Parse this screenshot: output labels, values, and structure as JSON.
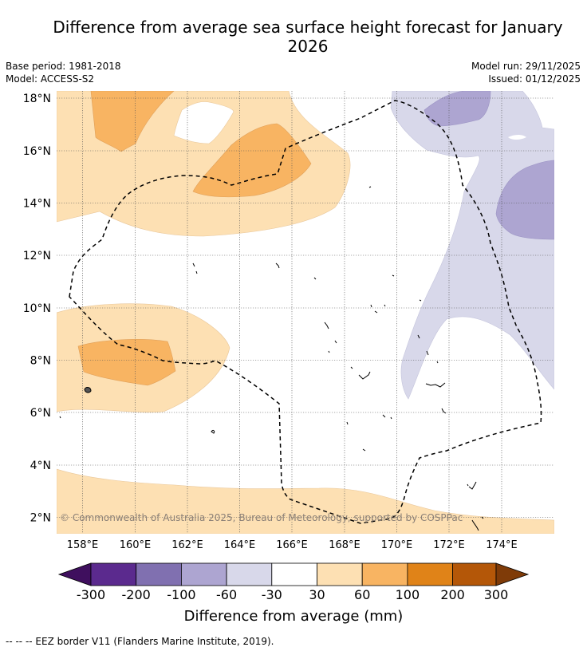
{
  "title": "Difference from average sea surface height forecast for January 2026",
  "base_period": "Base period: 1981-2018",
  "model": "Model: ACCESS-S2",
  "model_run": "Model run: 29/11/2025",
  "issued": "Issued: 01/12/2025",
  "copyright": "© Commonwealth of Australia 2025, Bureau of Meteorology, supported by COSPPac",
  "lat_labels": [
    "18°N",
    "16°N",
    "14°N",
    "12°N",
    "10°N",
    "8°N",
    "6°N",
    "4°N",
    "2°N"
  ],
  "lon_labels": [
    "158°E",
    "160°E",
    "162°E",
    "164°E",
    "166°E",
    "168°E",
    "170°E",
    "172°E",
    "174°E"
  ],
  "colorbar": {
    "title": "Difference from average (mm)",
    "tick_labels": [
      "-300",
      "-200",
      "-100",
      "-60",
      "-30",
      "30",
      "60",
      "100",
      "200",
      "300"
    ],
    "colors": [
      "#3f0f5e",
      "#5b2a8e",
      "#8070b0",
      "#ada5d1",
      "#d8d8ea",
      "#ffffff",
      "#fde0b3",
      "#f8b462",
      "#e08318",
      "#b45708",
      "#7f3b08"
    ]
  },
  "footnote": "--  --  -- EEZ border V11 (Flanders Marine Institute, 2019)."
}
